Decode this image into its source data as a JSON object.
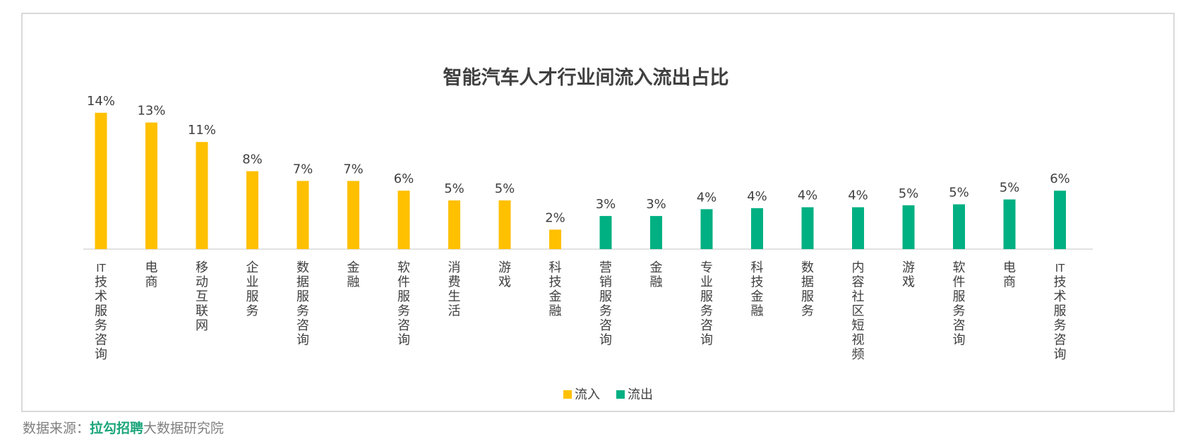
{
  "chart_data": {
    "type": "bar",
    "title": "智能汽车人才行业间流入流出占比",
    "xlabel": "",
    "ylabel": "",
    "ylim": [
      0,
      15
    ],
    "grid": false,
    "legend_position": "bottom",
    "categories": [
      "IT技术服务咨询",
      "电商",
      "移动互联网",
      "企业服务",
      "数据服务咨询",
      "金融",
      "软件服务咨询",
      "消费生活",
      "游戏",
      "科技金融",
      "营销服务咨询",
      "金融",
      "专业服务咨询",
      "科技金融",
      "数据服务",
      "内容社区短视频",
      "游戏",
      "软件服务咨询",
      "电商",
      "IT技术服务咨询"
    ],
    "groups": [
      {
        "name": "流入",
        "color": "#ffc000",
        "categories": [
          "IT技术服务咨询",
          "电商",
          "移动互联网",
          "企业服务",
          "数据服务咨询",
          "金融",
          "软件服务咨询",
          "消费生活",
          "游戏",
          "科技金融"
        ],
        "values": [
          14,
          13,
          11,
          8,
          7,
          7,
          6,
          5,
          5,
          2
        ],
        "labels": [
          "14%",
          "13%",
          "11%",
          "8%",
          "7%",
          "7%",
          "6%",
          "5%",
          "5%",
          "2%"
        ]
      },
      {
        "name": "流出",
        "color": "#00b082",
        "categories": [
          "营销服务咨询",
          "金融",
          "专业服务咨询",
          "科技金融",
          "数据服务",
          "内容社区短视频",
          "游戏",
          "软件服务咨询",
          "电商",
          "IT技术服务咨询"
        ],
        "values": [
          3.4,
          3.4,
          4.1,
          4.2,
          4.3,
          4.3,
          4.5,
          4.6,
          5.1,
          6.0
        ],
        "labels": [
          "3%",
          "3%",
          "4%",
          "4%",
          "4%",
          "4%",
          "5%",
          "5%",
          "5%",
          "6%"
        ]
      }
    ]
  },
  "source": {
    "prefix": "数据来源：",
    "brand": "拉勾招聘",
    "suffix": "大数据研究院"
  }
}
